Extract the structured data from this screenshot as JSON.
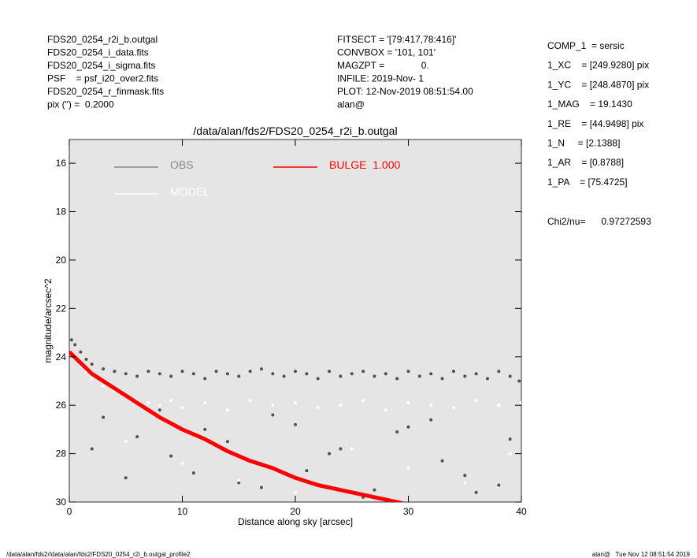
{
  "header_left": [
    "FDS20_0254_r2i_b.outgal",
    "FDS20_0254_i_data.fits",
    "FDS20_0254_i_sigma.fits",
    "PSF    = psf_i20_over2.fits",
    "FDS20_0254_r_finmask.fits",
    "pix (\") =  0.2000"
  ],
  "header_mid": [
    "FITSECT = '[79:417,78:416]'",
    "CONVBOX = '101, 101'",
    "MAGZPT =              0.",
    "INFILE: 2019-Nov- 1",
    "PLOT: 12-Nov-2019 08:51:54.00",
    "alan@"
  ],
  "params": [
    "COMP_1  = sersic",
    "1_XC    = [249.9280] pix",
    "1_YC    = [248.4870] pix",
    "1_MAG    = 19.1430",
    "1_RE    = [44.9498] pix",
    "1_N     = [2.1388]",
    "1_AR    = [0.8788]",
    "1_PA    = [75.4725]"
  ],
  "chi2": "Chi2/nu=      0.97272593",
  "footer_left": "/data/alan/fds2//data/alan/fds2/FDS20_0254_r2i_b.outgal_profile2",
  "footer_right": "alan@   Tue Nov 12 08:51:54 2019",
  "chart_data": {
    "type": "scatter",
    "title": "/data/alan/fds2/FDS20_0254_r2i_b.outgal",
    "x_label": "Distance along sky [arcsec]",
    "y_label": "magnitude/arcsec^2",
    "xlim": [
      0,
      40
    ],
    "xticks": [
      0,
      10,
      20,
      30,
      40
    ],
    "ylim": [
      15.02,
      30
    ],
    "yticks": [
      16,
      18,
      20,
      22,
      24,
      26,
      28,
      30
    ],
    "y_inverted": true,
    "background": "#e5e5e5",
    "series": [
      {
        "name": "OBS",
        "color": "#505050",
        "mode": "points",
        "x": [
          0.2,
          0.5,
          1,
          1.5,
          2,
          3,
          4,
          5,
          6,
          7,
          8,
          9,
          10,
          11,
          12,
          13,
          14,
          15,
          16,
          17,
          18,
          19,
          20,
          21,
          22,
          23,
          24,
          25,
          26,
          27,
          28,
          29,
          30,
          31,
          32,
          33,
          34,
          35,
          36,
          37,
          38,
          39,
          39.8,
          3,
          6,
          9,
          12,
          15,
          18,
          21,
          24,
          27,
          30,
          33,
          36,
          39,
          2,
          5,
          8,
          11,
          14,
          17,
          20,
          23,
          26,
          29,
          32,
          35,
          38
        ],
        "values": [
          23.3,
          23.5,
          23.8,
          24.1,
          24.3,
          24.5,
          24.6,
          24.7,
          24.8,
          24.6,
          24.7,
          24.8,
          24.6,
          24.7,
          24.9,
          24.6,
          24.7,
          24.8,
          24.6,
          24.5,
          24.7,
          24.8,
          24.6,
          24.7,
          24.9,
          24.6,
          24.8,
          24.7,
          24.6,
          24.8,
          24.7,
          24.9,
          24.6,
          24.8,
          24.7,
          24.9,
          24.6,
          24.8,
          24.7,
          24.9,
          24.6,
          24.8,
          25.0,
          26.5,
          27.3,
          28.1,
          27.0,
          29.2,
          26.4,
          28.7,
          27.8,
          29.5,
          26.9,
          28.3,
          29.6,
          27.4,
          27.8,
          29.0,
          26.2,
          28.8,
          27.5,
          29.4,
          26.8,
          28.0,
          29.8,
          27.1,
          26.6,
          28.9,
          29.3
        ]
      },
      {
        "name": "MODEL",
        "color": "#ffffff",
        "mode": "points",
        "x": [
          0.5,
          1,
          1.5,
          2,
          3,
          4,
          5,
          6,
          7,
          8,
          9,
          10,
          12,
          14,
          16,
          18,
          20,
          22,
          24,
          26,
          28,
          30,
          32,
          34,
          36,
          38,
          40,
          5,
          10,
          15,
          20,
          25,
          30,
          35,
          39
        ],
        "values": [
          24.0,
          24.4,
          24.6,
          24.9,
          25.2,
          25.4,
          25.6,
          25.8,
          25.9,
          26.0,
          25.8,
          26.1,
          25.9,
          26.2,
          25.8,
          26.0,
          25.9,
          26.1,
          26.0,
          25.8,
          26.2,
          25.9,
          26.0,
          26.1,
          25.8,
          26.0,
          25.9,
          27.5,
          28.4,
          29.1,
          29.6,
          27.8,
          28.6,
          29.2,
          28.0
        ]
      },
      {
        "name": "BULGE  1.000",
        "color": "#ff0000",
        "mode": "band",
        "x": [
          0,
          2,
          4,
          6,
          8,
          10,
          12,
          14,
          16,
          18,
          20,
          22,
          24,
          26,
          28,
          29.5
        ],
        "values": [
          23.8,
          24.7,
          25.3,
          25.9,
          26.5,
          27.0,
          27.4,
          27.9,
          28.3,
          28.6,
          29.0,
          29.3,
          29.5,
          29.7,
          29.9,
          30.05
        ]
      }
    ]
  }
}
